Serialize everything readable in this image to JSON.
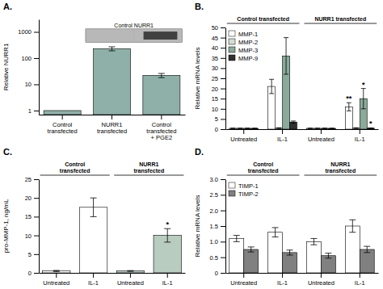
{
  "chart_data": [
    {
      "type": "bar",
      "title": "A.",
      "categories": [
        "Control\ntransfected",
        "NURR1\ntransfected",
        "Control\ntransfected\n+ PGE2"
      ],
      "values": [
        1,
        230,
        22
      ],
      "errors": [
        null,
        40,
        4
      ],
      "color": "#8fb0a8",
      "ylabel": "Relative NURR1",
      "log": "y",
      "ylim": [
        0.7,
        3000
      ],
      "yticks": [
        1,
        10,
        100,
        1000
      ],
      "annotations": [
        {
          "text": "Control NURR1"
        }
      ]
    },
    {
      "type": "bar",
      "title": "B.",
      "categories": [
        "Untreated",
        "IL-1",
        "Untreated",
        "IL-1"
      ],
      "series": [
        {
          "name": "MMP-1",
          "color": "#ffffff",
          "values": [
            0.4,
            21,
            0.4,
            11
          ],
          "errors": [
            0.1,
            3.5,
            0.1,
            2.0
          ]
        },
        {
          "name": "MMP-2",
          "color": "#d4dcd4",
          "values": [
            0.4,
            0.5,
            0.4,
            0.5
          ],
          "errors": [
            0.05,
            0.2,
            0.05,
            0.2
          ]
        },
        {
          "name": "MMP-3",
          "color": "#8aaa9a",
          "values": [
            0.4,
            36,
            0.4,
            15
          ],
          "errors": [
            0.1,
            9,
            0.1,
            5
          ]
        },
        {
          "name": "MMP-9",
          "color": "#303030",
          "values": [
            0.4,
            3.5,
            0.4,
            0.5
          ],
          "errors": [
            0.05,
            0.5,
            0.05,
            0.1
          ]
        }
      ],
      "ylabel": "Relative mRNA levels",
      "ylim": [
        0,
        50
      ],
      "yticks": [
        0,
        5,
        10,
        15,
        20,
        25,
        30,
        35,
        40,
        45,
        50
      ],
      "legend": "upper left",
      "annotations": [
        {
          "text": "**",
          "series": "MMP-1",
          "category": 3
        },
        {
          "text": "*",
          "series": "MMP-3",
          "category": 3
        },
        {
          "text": "*",
          "series": "MMP-9",
          "category": 3
        },
        {
          "text": "Control transfected",
          "categories": [
            0,
            1
          ]
        },
        {
          "text": "NURR1 transfected",
          "categories": [
            2,
            3
          ]
        }
      ]
    },
    {
      "type": "bar",
      "title": "C.",
      "categories": [
        "Untreated",
        "IL-1",
        "Untreated",
        "IL-1"
      ],
      "values": [
        0.5,
        17.5,
        0.5,
        10
      ],
      "errors": [
        0.15,
        2.5,
        0.1,
        1.8
      ],
      "colors": [
        "#ffffff",
        "#ffffff",
        "#b8ccc0",
        "#b8ccc0"
      ],
      "ylabel": "pro-MMP-1, ng/mL",
      "ylim": [
        0,
        25
      ],
      "yticks": [
        0,
        5,
        10,
        15,
        20,
        25
      ],
      "annotations": [
        {
          "text": "*",
          "category": 3
        },
        {
          "text": "Control\ntransfected",
          "categories": [
            0,
            1
          ]
        },
        {
          "text": "NURR1\ntransfected",
          "categories": [
            2,
            3
          ]
        }
      ]
    },
    {
      "type": "bar",
      "title": "D.",
      "categories": [
        "Untreated",
        "IL-1",
        "Untreated",
        "IL-1"
      ],
      "series": [
        {
          "name": "TIMP-1",
          "color": "#ffffff",
          "values": [
            1.1,
            1.3,
            1.0,
            1.5
          ],
          "errors": [
            0.1,
            0.15,
            0.1,
            0.2
          ]
        },
        {
          "name": "TIMP-2",
          "color": "#808080",
          "values": [
            0.75,
            0.65,
            0.55,
            0.75
          ],
          "errors": [
            0.08,
            0.08,
            0.08,
            0.1
          ]
        }
      ],
      "ylabel": "Relative mRNA levels",
      "ylim": [
        0,
        3
      ],
      "yticks": [
        0,
        0.5,
        {
          "value": 1,
          "label": "1.0"
        },
        1.5,
        {
          "value": 2,
          "label": "2.0"
        },
        2.5,
        {
          "value": 3,
          "label": "3.0"
        }
      ],
      "legend": "upper left",
      "annotations": [
        {
          "text": "Control\ntransfected",
          "categories": [
            0,
            1
          ]
        },
        {
          "text": "NURR1\ntransfected",
          "categories": [
            2,
            3
          ]
        }
      ]
    }
  ]
}
